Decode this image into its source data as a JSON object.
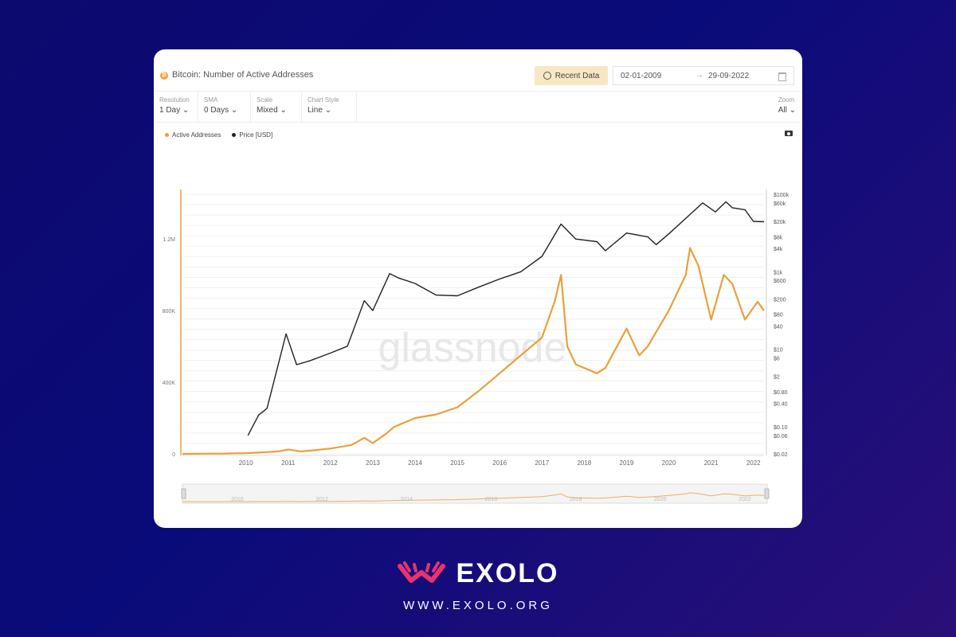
{
  "header": {
    "title": "Bitcoin: Number of Active Addresses",
    "recent_data_label": "Recent Data",
    "date_start": "02-01-2009",
    "date_arrow": "→",
    "date_end": "29-09-2022"
  },
  "controls": [
    {
      "label": "Resolution",
      "value": "1 Day"
    },
    {
      "label": "SMA",
      "value": "0 Days"
    },
    {
      "label": "Scale",
      "value": "Mixed"
    },
    {
      "label": "Chart Style",
      "value": "Line"
    }
  ],
  "zoom": {
    "label": "Zoom",
    "value": "All"
  },
  "watermark": "glassnode",
  "brand": {
    "name": "EXOLO",
    "url": "WWW.EXOLO.ORG",
    "accent": "#e8336f"
  },
  "colors": {
    "active_addresses": "#e9a03a",
    "price": "#222222"
  },
  "chart_data": {
    "type": "line",
    "x_ticks": [
      "2010",
      "2011",
      "2012",
      "2013",
      "2014",
      "2015",
      "2016",
      "2017",
      "2018",
      "2019",
      "2020",
      "2021",
      "2022"
    ],
    "y_left_ticks": [
      "0",
      "400K",
      "800K",
      "1.2M"
    ],
    "y_left_tick_values": [
      0,
      400000,
      800000,
      1200000
    ],
    "y_right_ticks": [
      "$100k",
      "$60k",
      "$20k",
      "$8k",
      "$4k",
      "$1k",
      "$600",
      "$200",
      "$80",
      "$40",
      "$10",
      "$6",
      "$2",
      "$0.80",
      "$0.40",
      "$0.10",
      "$0.06",
      "$0.02"
    ],
    "y_right_tick_values": [
      100000,
      60000,
      20000,
      8000,
      4000,
      1000,
      600,
      200,
      80,
      40,
      10,
      6,
      2,
      0.8,
      0.4,
      0.1,
      0.06,
      0.02
    ],
    "navigator_ticks": [
      "2010",
      "2012",
      "2014",
      "2016",
      "2018",
      "2020",
      "2022"
    ],
    "series": [
      {
        "name": "Active Addresses",
        "axis": "left",
        "points": [
          [
            2009.0,
            0
          ],
          [
            2009.5,
            1000
          ],
          [
            2010.0,
            2000
          ],
          [
            2010.5,
            4000
          ],
          [
            2011.0,
            10000
          ],
          [
            2011.3,
            15000
          ],
          [
            2011.5,
            25000
          ],
          [
            2011.8,
            14000
          ],
          [
            2012.0,
            18000
          ],
          [
            2012.5,
            30000
          ],
          [
            2013.0,
            50000
          ],
          [
            2013.3,
            90000
          ],
          [
            2013.5,
            60000
          ],
          [
            2013.8,
            110000
          ],
          [
            2014.0,
            150000
          ],
          [
            2014.5,
            200000
          ],
          [
            2015.0,
            220000
          ],
          [
            2015.5,
            260000
          ],
          [
            2016.0,
            350000
          ],
          [
            2016.5,
            450000
          ],
          [
            2017.0,
            550000
          ],
          [
            2017.5,
            650000
          ],
          [
            2017.8,
            850000
          ],
          [
            2017.95,
            1000000
          ],
          [
            2018.1,
            600000
          ],
          [
            2018.3,
            500000
          ],
          [
            2018.8,
            450000
          ],
          [
            2019.0,
            480000
          ],
          [
            2019.5,
            700000
          ],
          [
            2019.8,
            550000
          ],
          [
            2020.0,
            600000
          ],
          [
            2020.5,
            800000
          ],
          [
            2020.9,
            1000000
          ],
          [
            2021.0,
            1150000
          ],
          [
            2021.2,
            1050000
          ],
          [
            2021.5,
            750000
          ],
          [
            2021.8,
            1000000
          ],
          [
            2022.0,
            950000
          ],
          [
            2022.3,
            750000
          ],
          [
            2022.6,
            850000
          ],
          [
            2022.75,
            800000
          ]
        ]
      },
      {
        "name": "Price [USD]",
        "axis": "right",
        "points": [
          [
            2010.55,
            0.06
          ],
          [
            2010.8,
            0.2
          ],
          [
            2011.0,
            0.3
          ],
          [
            2011.45,
            25
          ],
          [
            2011.7,
            4
          ],
          [
            2012.0,
            5
          ],
          [
            2012.5,
            8
          ],
          [
            2012.9,
            12
          ],
          [
            2013.3,
            180
          ],
          [
            2013.5,
            100
          ],
          [
            2013.9,
            900
          ],
          [
            2014.1,
            700
          ],
          [
            2014.5,
            500
          ],
          [
            2015.0,
            250
          ],
          [
            2015.5,
            240
          ],
          [
            2016.0,
            400
          ],
          [
            2016.5,
            650
          ],
          [
            2017.0,
            1000
          ],
          [
            2017.5,
            2500
          ],
          [
            2017.95,
            17000
          ],
          [
            2018.3,
            7000
          ],
          [
            2018.8,
            6000
          ],
          [
            2019.0,
            3500
          ],
          [
            2019.5,
            10000
          ],
          [
            2020.0,
            8000
          ],
          [
            2020.2,
            5000
          ],
          [
            2020.5,
            9500
          ],
          [
            2021.0,
            30000
          ],
          [
            2021.3,
            60000
          ],
          [
            2021.6,
            35000
          ],
          [
            2021.85,
            64000
          ],
          [
            2022.0,
            45000
          ],
          [
            2022.3,
            40000
          ],
          [
            2022.5,
            20000
          ],
          [
            2022.75,
            19500
          ]
        ]
      }
    ],
    "xlim": [
      2009.0,
      2022.75
    ],
    "ylim_left": [
      0,
      1450000
    ],
    "ylim_right": [
      0.02,
      100000
    ],
    "y_right_scale": "log",
    "grid": true,
    "legend": "top-left"
  }
}
